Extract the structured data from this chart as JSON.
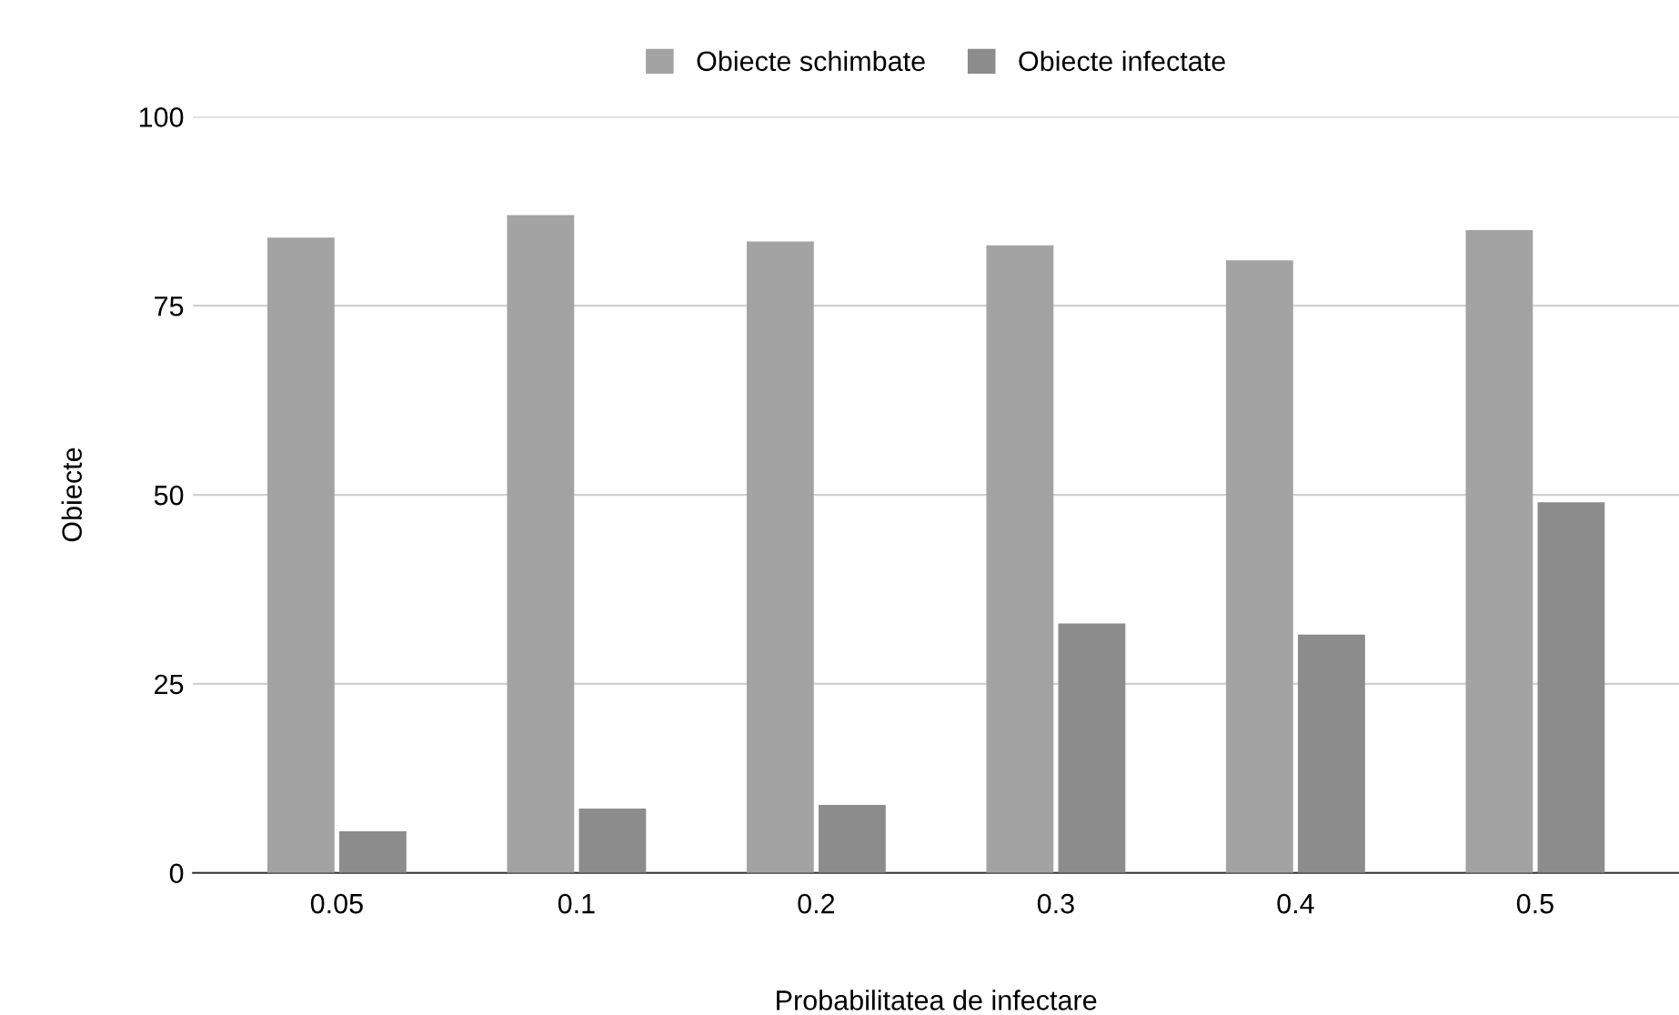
{
  "chart_data": {
    "type": "bar",
    "xlabel": "Probabilitatea de infectare",
    "ylabel": "Obiecte",
    "categories": [
      "0.05",
      "0.1",
      "0.2",
      "0.3",
      "0.4",
      "0.5"
    ],
    "series": [
      {
        "name": "Obiecte schimbate",
        "color": "#a3a3a3",
        "values": [
          84,
          87,
          83.5,
          83,
          81,
          85
        ]
      },
      {
        "name": "Obiecte infectate",
        "color": "#8c8c8c",
        "values": [
          5.5,
          8.5,
          9,
          33,
          31.5,
          49
        ]
      }
    ],
    "ylim": [
      0,
      100
    ],
    "yticks": [
      0,
      25,
      50,
      75,
      100
    ],
    "grid": "y",
    "legend": "top"
  }
}
